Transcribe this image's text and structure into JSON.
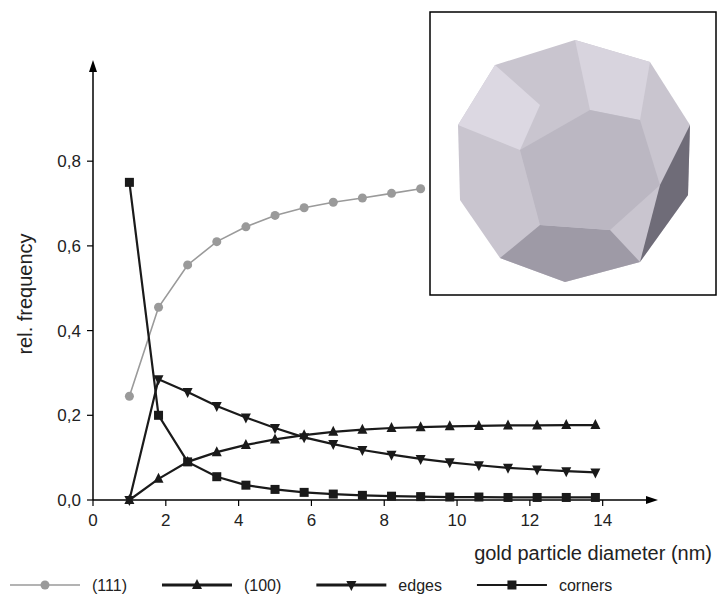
{
  "chart_data": {
    "type": "line",
    "x_label": "gold particle diameter (nm)",
    "y_label": "rel. frequency",
    "x": [
      1,
      1.8,
      2.6,
      3.4,
      4.2,
      5.0,
      5.8,
      6.6,
      7.4,
      8.2,
      9.0,
      9.8,
      10.6,
      11.4,
      12.2,
      13.0,
      13.8
    ],
    "series": [
      {
        "name": "(111)",
        "color": "#9a9a9a",
        "marker": "circle",
        "line_style": "solid",
        "values": [
          0.245,
          0.455,
          0.555,
          0.61,
          0.645,
          0.672,
          0.69,
          0.703,
          0.713,
          0.724,
          0.735,
          null,
          null,
          null,
          null,
          null,
          null
        ]
      },
      {
        "name": "(100)",
        "color": "#1a1a1a",
        "marker": "triangle-up",
        "line_style": "solid",
        "values": [
          0.0,
          0.05,
          0.09,
          0.113,
          0.13,
          0.143,
          0.153,
          0.161,
          0.166,
          0.17,
          0.172,
          0.174,
          0.175,
          0.176,
          0.176,
          0.177,
          0.177
        ]
      },
      {
        "name": "edges",
        "color": "#1a1a1a",
        "marker": "triangle-down",
        "line_style": "solid",
        "values": [
          0.0,
          0.285,
          0.255,
          0.222,
          0.195,
          0.17,
          0.148,
          0.132,
          0.118,
          0.107,
          0.097,
          0.089,
          0.082,
          0.076,
          0.072,
          0.068,
          0.065
        ]
      },
      {
        "name": "corners",
        "color": "#1a1a1a",
        "marker": "square",
        "line_style": "solid",
        "values": [
          0.75,
          0.2,
          0.09,
          0.055,
          0.035,
          0.025,
          0.018,
          0.014,
          0.011,
          0.009,
          0.008,
          0.007,
          0.007,
          0.006,
          0.006,
          0.006,
          0.006
        ]
      }
    ],
    "xlim": [
      0,
      15.3
    ],
    "ylim": [
      0,
      1.02
    ],
    "xticks": [
      0,
      2,
      4,
      6,
      8,
      10,
      12,
      14
    ],
    "yticks": [
      {
        "value": 0,
        "label": "0,0"
      },
      {
        "value": 0.2,
        "label": "0,2"
      },
      {
        "value": 0.4,
        "label": "0,4"
      },
      {
        "value": 0.6,
        "label": "0,6"
      },
      {
        "value": 0.8,
        "label": "0,8"
      }
    ],
    "grid": false,
    "legend": "bottom"
  }
}
